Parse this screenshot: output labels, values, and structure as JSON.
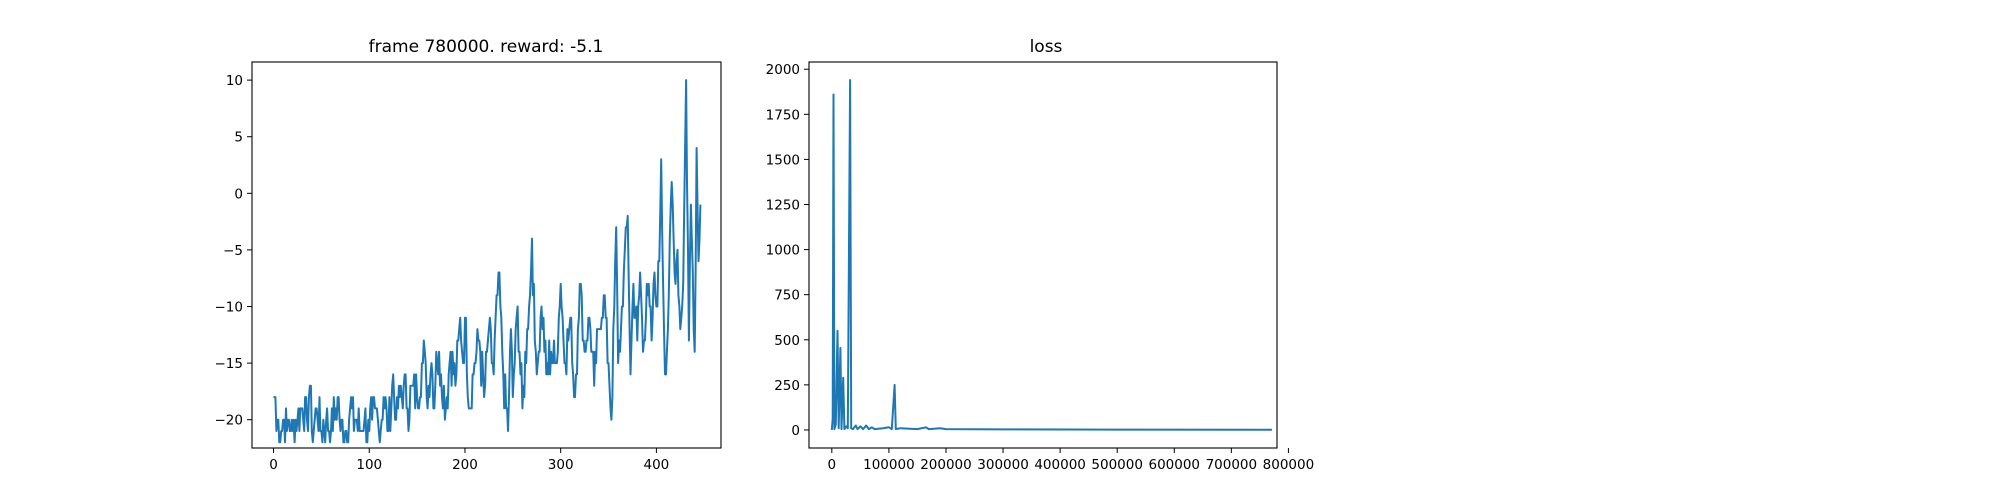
{
  "chart_data": [
    {
      "type": "line",
      "title": "frame 780000. reward: -5.1",
      "xlabel": "",
      "ylabel": "",
      "xlim": [
        -22.5,
        467.5
      ],
      "ylim": [
        -22.5,
        11.6
      ],
      "xticks": [
        0,
        100,
        200,
        300,
        400
      ],
      "yticks": [
        -20,
        -15,
        -10,
        -5,
        0,
        5,
        10
      ],
      "xtick_labels": [
        "0",
        "100",
        "200",
        "300",
        "400"
      ],
      "ytick_labels": [
        "−20",
        "−15",
        "−10",
        "−5",
        "0",
        "5",
        "10"
      ],
      "grid": false,
      "line_color": "#1f77b4",
      "anchors": [
        [
          0,
          -18
        ],
        [
          2,
          -18
        ],
        [
          3,
          -21
        ],
        [
          5,
          -20
        ],
        [
          8,
          -21
        ],
        [
          10,
          -20
        ],
        [
          14,
          -21
        ],
        [
          16,
          -20
        ],
        [
          20,
          -21
        ],
        [
          25,
          -20
        ],
        [
          30,
          -19
        ],
        [
          35,
          -20
        ],
        [
          38,
          -17
        ],
        [
          40,
          -21
        ],
        [
          45,
          -19
        ],
        [
          50,
          -21
        ],
        [
          55,
          -20
        ],
        [
          60,
          -21
        ],
        [
          65,
          -19
        ],
        [
          68,
          -18
        ],
        [
          70,
          -21
        ],
        [
          75,
          -21
        ],
        [
          80,
          -19
        ],
        [
          85,
          -20
        ],
        [
          90,
          -21
        ],
        [
          95,
          -20
        ],
        [
          100,
          -21
        ],
        [
          103,
          -20
        ],
        [
          106,
          -19
        ],
        [
          110,
          -21
        ],
        [
          115,
          -18
        ],
        [
          120,
          -21
        ],
        [
          125,
          -16
        ],
        [
          128,
          -20
        ],
        [
          132,
          -18
        ],
        [
          136,
          -17
        ],
        [
          140,
          -19
        ],
        [
          145,
          -17
        ],
        [
          150,
          -18
        ],
        [
          155,
          -15
        ],
        [
          158,
          -14
        ],
        [
          160,
          -18
        ],
        [
          165,
          -15
        ],
        [
          168,
          -19
        ],
        [
          170,
          -14
        ],
        [
          175,
          -16
        ],
        [
          180,
          -19
        ],
        [
          185,
          -14
        ],
        [
          190,
          -17
        ],
        [
          195,
          -11
        ],
        [
          198,
          -15
        ],
        [
          200,
          -11
        ],
        [
          205,
          -19
        ],
        [
          210,
          -15
        ],
        [
          215,
          -13
        ],
        [
          220,
          -18
        ],
        [
          225,
          -12
        ],
        [
          230,
          -16
        ],
        [
          235,
          -7
        ],
        [
          240,
          -16
        ],
        [
          245,
          -21
        ],
        [
          248,
          -12
        ],
        [
          250,
          -18
        ],
        [
          255,
          -10
        ],
        [
          260,
          -19
        ],
        [
          265,
          -12
        ],
        [
          268,
          -9
        ],
        [
          270,
          -4
        ],
        [
          273,
          -13
        ],
        [
          276,
          -15
        ],
        [
          280,
          -10
        ],
        [
          285,
          -16
        ],
        [
          290,
          -14
        ],
        [
          295,
          -15
        ],
        [
          300,
          -8
        ],
        [
          305,
          -15
        ],
        [
          310,
          -11
        ],
        [
          315,
          -18
        ],
        [
          318,
          -12
        ],
        [
          320,
          -8
        ],
        [
          325,
          -14
        ],
        [
          330,
          -11
        ],
        [
          335,
          -17
        ],
        [
          340,
          -12
        ],
        [
          345,
          -9
        ],
        [
          350,
          -15
        ],
        [
          353,
          -20
        ],
        [
          356,
          -10
        ],
        [
          358,
          -3
        ],
        [
          360,
          -15
        ],
        [
          363,
          -12
        ],
        [
          366,
          -7
        ],
        [
          370,
          -2
        ],
        [
          373,
          -16
        ],
        [
          376,
          -8
        ],
        [
          380,
          -13
        ],
        [
          383,
          -7
        ],
        [
          386,
          -14
        ],
        [
          390,
          -8
        ],
        [
          395,
          -13
        ],
        [
          398,
          -7
        ],
        [
          400,
          -10
        ],
        [
          403,
          -6
        ],
        [
          405,
          3
        ],
        [
          408,
          -12
        ],
        [
          410,
          -16
        ],
        [
          413,
          -9
        ],
        [
          416,
          1
        ],
        [
          419,
          -7
        ],
        [
          422,
          -5
        ],
        [
          425,
          -12
        ],
        [
          428,
          -8
        ],
        [
          431,
          10
        ],
        [
          434,
          -13
        ],
        [
          436,
          -1
        ],
        [
          438,
          -7
        ],
        [
          440,
          -14
        ],
        [
          442,
          4
        ],
        [
          444,
          -6
        ],
        [
          446,
          -1
        ]
      ]
    },
    {
      "type": "line",
      "title": "loss",
      "xlabel": "",
      "ylabel": "",
      "xlim": [
        -40000,
        780000
      ],
      "ylim": [
        -100,
        2040
      ],
      "xticks": [
        0,
        100000,
        200000,
        300000,
        400000,
        500000,
        600000,
        700000,
        800000
      ],
      "yticks": [
        0,
        250,
        500,
        750,
        1000,
        1250,
        1500,
        1750,
        2000
      ],
      "xtick_labels": [
        "0",
        "100000",
        "200000",
        "300000",
        "400000",
        "500000",
        "600000",
        "700000",
        "800000"
      ],
      "ytick_labels": [
        "0",
        "250",
        "500",
        "750",
        "1000",
        "1250",
        "1500",
        "1750",
        "2000"
      ],
      "grid": false,
      "line_color": "#1f77b4",
      "points": [
        [
          0,
          0
        ],
        [
          1500,
          60
        ],
        [
          3000,
          1860
        ],
        [
          4500,
          5
        ],
        [
          7000,
          30
        ],
        [
          10000,
          550
        ],
        [
          12000,
          10
        ],
        [
          15000,
          455
        ],
        [
          17000,
          5
        ],
        [
          20000,
          290
        ],
        [
          22000,
          5
        ],
        [
          25000,
          20
        ],
        [
          28000,
          10
        ],
        [
          32000,
          1940
        ],
        [
          34000,
          10
        ],
        [
          37000,
          5
        ],
        [
          42000,
          25
        ],
        [
          45000,
          5
        ],
        [
          50000,
          20
        ],
        [
          55000,
          5
        ],
        [
          60000,
          25
        ],
        [
          65000,
          5
        ],
        [
          70000,
          15
        ],
        [
          75000,
          5
        ],
        [
          90000,
          10
        ],
        [
          100000,
          15
        ],
        [
          105000,
          5
        ],
        [
          110000,
          250
        ],
        [
          112000,
          5
        ],
        [
          120000,
          10
        ],
        [
          150000,
          5
        ],
        [
          165000,
          15
        ],
        [
          170000,
          5
        ],
        [
          190000,
          10
        ],
        [
          200000,
          5
        ],
        [
          300000,
          3
        ],
        [
          500000,
          2
        ],
        [
          771000,
          1
        ]
      ]
    }
  ]
}
